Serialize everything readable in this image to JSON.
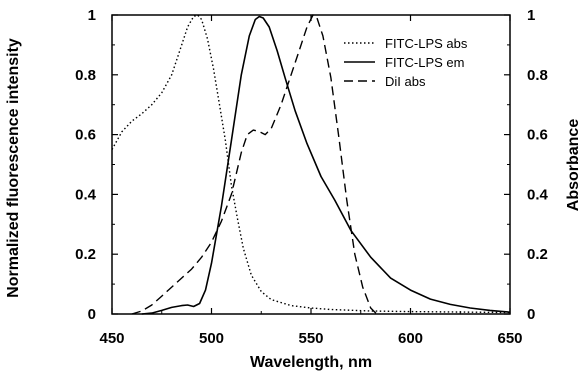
{
  "chart_data": {
    "type": "line",
    "xlabel": "Wavelength, nm",
    "ylabel_left": "Normalized fluorescence intensity",
    "ylabel_right": "Absorbance",
    "xlim": [
      450,
      650
    ],
    "ylim": [
      0,
      1
    ],
    "x_ticks": [
      "450",
      "500",
      "550",
      "600",
      "650"
    ],
    "y_ticks": [
      "0",
      "0.2",
      "0.4",
      "0.6",
      "0.8",
      "1"
    ],
    "legend_position": "top-right",
    "series": [
      {
        "name": "FITC-LPS abs",
        "style": "dotted",
        "points": [
          [
            450,
            0.55
          ],
          [
            455,
            0.61
          ],
          [
            460,
            0.645
          ],
          [
            465,
            0.67
          ],
          [
            470,
            0.7
          ],
          [
            475,
            0.74
          ],
          [
            480,
            0.8
          ],
          [
            484,
            0.88
          ],
          [
            488,
            0.96
          ],
          [
            491,
            0.995
          ],
          [
            493,
            1.0
          ],
          [
            495,
            0.985
          ],
          [
            498,
            0.92
          ],
          [
            501,
            0.82
          ],
          [
            504,
            0.7
          ],
          [
            507,
            0.58
          ],
          [
            510,
            0.43
          ],
          [
            513,
            0.32
          ],
          [
            516,
            0.22
          ],
          [
            520,
            0.13
          ],
          [
            525,
            0.075
          ],
          [
            530,
            0.048
          ],
          [
            540,
            0.028
          ],
          [
            550,
            0.02
          ],
          [
            560,
            0.015
          ],
          [
            580,
            0.01
          ],
          [
            600,
            0.008
          ],
          [
            650,
            0.005
          ]
        ]
      },
      {
        "name": "FITC-LPS em",
        "style": "solid",
        "points": [
          [
            465,
            0.0
          ],
          [
            470,
            0.003
          ],
          [
            475,
            0.012
          ],
          [
            480,
            0.022
          ],
          [
            485,
            0.028
          ],
          [
            488,
            0.03
          ],
          [
            491,
            0.025
          ],
          [
            494,
            0.035
          ],
          [
            497,
            0.08
          ],
          [
            500,
            0.17
          ],
          [
            505,
            0.36
          ],
          [
            510,
            0.58
          ],
          [
            515,
            0.8
          ],
          [
            519,
            0.93
          ],
          [
            522,
            0.985
          ],
          [
            524,
            0.995
          ],
          [
            526,
            0.99
          ],
          [
            529,
            0.96
          ],
          [
            533,
            0.88
          ],
          [
            537,
            0.79
          ],
          [
            542,
            0.68
          ],
          [
            548,
            0.57
          ],
          [
            555,
            0.46
          ],
          [
            562,
            0.38
          ],
          [
            570,
            0.28
          ],
          [
            580,
            0.19
          ],
          [
            590,
            0.12
          ],
          [
            600,
            0.08
          ],
          [
            610,
            0.05
          ],
          [
            620,
            0.032
          ],
          [
            630,
            0.02
          ],
          [
            640,
            0.012
          ],
          [
            650,
            0.006
          ]
        ]
      },
      {
        "name": "DiI abs",
        "style": "dashed",
        "points": [
          [
            460,
            0.0
          ],
          [
            465,
            0.01
          ],
          [
            470,
            0.03
          ],
          [
            475,
            0.06
          ],
          [
            480,
            0.09
          ],
          [
            485,
            0.12
          ],
          [
            490,
            0.15
          ],
          [
            495,
            0.19
          ],
          [
            500,
            0.24
          ],
          [
            505,
            0.31
          ],
          [
            510,
            0.4
          ],
          [
            515,
            0.54
          ],
          [
            518,
            0.6
          ],
          [
            521,
            0.615
          ],
          [
            524,
            0.61
          ],
          [
            527,
            0.6
          ],
          [
            530,
            0.62
          ],
          [
            535,
            0.7
          ],
          [
            540,
            0.8
          ],
          [
            544,
            0.88
          ],
          [
            548,
            0.96
          ],
          [
            551,
            1.0
          ],
          [
            553,
            0.99
          ],
          [
            556,
            0.93
          ],
          [
            560,
            0.79
          ],
          [
            564,
            0.59
          ],
          [
            568,
            0.38
          ],
          [
            572,
            0.2
          ],
          [
            576,
            0.09
          ],
          [
            580,
            0.02
          ],
          [
            583,
            0.0
          ]
        ]
      }
    ]
  }
}
